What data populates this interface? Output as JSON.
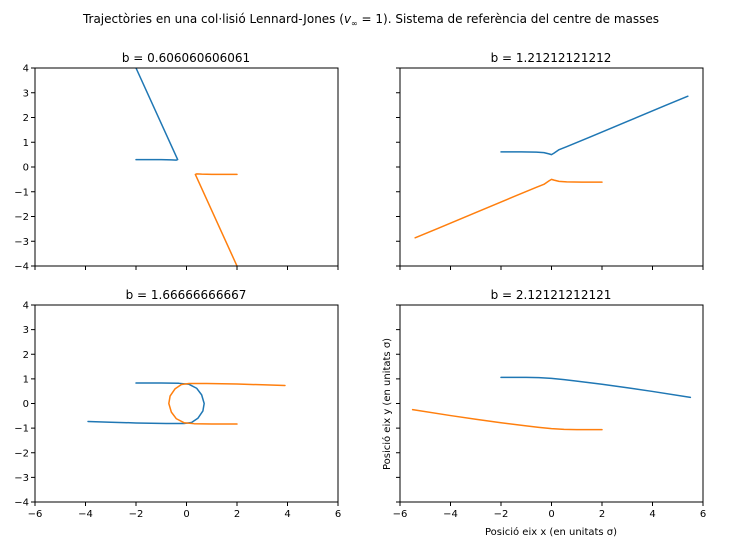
{
  "figure": {
    "suptitle_prefix": "Trajectòries en una col·lisió Lennard-Jones (",
    "suptitle_math": "v",
    "suptitle_sub": "∞",
    "suptitle_eq": " = 1",
    "suptitle_suffix": "). Sistema de referència del centre de masses",
    "xlabel": "Posició eix x (en unitats σ)",
    "ylabel": "Posició eix y (en unitats σ)"
  },
  "chart_data": [
    {
      "type": "line",
      "title": "b = 0.606060606061",
      "xlim": [
        -6,
        6
      ],
      "ylim": [
        -4,
        4
      ],
      "xticks": [
        -6,
        -4,
        -2,
        0,
        2,
        4,
        6
      ],
      "yticks": [
        -4,
        -3,
        -2,
        -1,
        0,
        1,
        2,
        3,
        4
      ],
      "show_xticklabels": false,
      "show_yticklabels": true,
      "series": [
        {
          "color": "#1f77b4",
          "x": [
            -2.0,
            -1.0,
            -0.6,
            -0.4,
            -0.35,
            -2.0
          ],
          "y": [
            0.3,
            0.3,
            0.29,
            0.28,
            0.3,
            4.0
          ]
        },
        {
          "color": "#ff7f0e",
          "x": [
            2.0,
            1.0,
            0.6,
            0.4,
            0.35,
            2.0
          ],
          "y": [
            -0.3,
            -0.3,
            -0.29,
            -0.28,
            -0.3,
            -4.0
          ]
        }
      ]
    },
    {
      "type": "line",
      "title": "b = 1.21212121212",
      "xlim": [
        -6,
        6
      ],
      "ylim": [
        -4,
        4
      ],
      "xticks": [
        -6,
        -4,
        -2,
        0,
        2,
        4,
        6
      ],
      "yticks": [
        -4,
        -3,
        -2,
        -1,
        0,
        1,
        2,
        3,
        4
      ],
      "show_xticklabels": false,
      "show_yticklabels": false,
      "series": [
        {
          "color": "#1f77b4",
          "x": [
            -2.0,
            -1.2,
            -0.6,
            -0.3,
            -0.1,
            0.0,
            0.1,
            0.3,
            0.6,
            1.5,
            3.0,
            4.5,
            5.4
          ],
          "y": [
            0.61,
            0.61,
            0.6,
            0.58,
            0.53,
            0.5,
            0.56,
            0.7,
            0.82,
            1.2,
            1.84,
            2.48,
            2.86
          ]
        },
        {
          "color": "#ff7f0e",
          "x": [
            2.0,
            1.2,
            0.6,
            0.3,
            0.1,
            0.0,
            -0.1,
            -0.3,
            -0.6,
            -1.5,
            -3.0,
            -4.5,
            -5.4
          ],
          "y": [
            -0.61,
            -0.61,
            -0.6,
            -0.58,
            -0.53,
            -0.5,
            -0.56,
            -0.7,
            -0.82,
            -1.2,
            -1.84,
            -2.48,
            -2.86
          ]
        }
      ]
    },
    {
      "type": "line",
      "title": "b = 1.66666666667",
      "xlim": [
        -6,
        6
      ],
      "ylim": [
        -4,
        4
      ],
      "xticks": [
        -6,
        -4,
        -2,
        0,
        2,
        4,
        6
      ],
      "yticks": [
        -4,
        -3,
        -2,
        -1,
        0,
        1,
        2,
        3,
        4
      ],
      "show_xticklabels": true,
      "show_yticklabels": true,
      "series": [
        {
          "color": "#1f77b4",
          "x": [
            -2.0,
            -1.0,
            -0.3,
            0.1,
            0.4,
            0.6,
            0.7,
            0.65,
            0.45,
            0.2,
            -0.1,
            -0.8,
            -2.0,
            -3.0,
            -3.9
          ],
          "y": [
            0.83,
            0.83,
            0.82,
            0.78,
            0.62,
            0.35,
            0.0,
            -0.3,
            -0.6,
            -0.77,
            -0.81,
            -0.81,
            -0.79,
            -0.76,
            -0.73
          ]
        },
        {
          "color": "#ff7f0e",
          "x": [
            2.0,
            1.0,
            0.3,
            -0.1,
            -0.4,
            -0.6,
            -0.7,
            -0.65,
            -0.45,
            -0.2,
            0.1,
            0.8,
            2.0,
            3.0,
            3.9
          ],
          "y": [
            -0.83,
            -0.83,
            -0.82,
            -0.78,
            -0.62,
            -0.35,
            0.0,
            0.3,
            0.6,
            0.77,
            0.81,
            0.81,
            0.79,
            0.76,
            0.73
          ]
        }
      ]
    },
    {
      "type": "line",
      "title": "b = 2.12121212121",
      "xlim": [
        -6,
        6
      ],
      "ylim": [
        -4,
        4
      ],
      "xticks": [
        -6,
        -4,
        -2,
        0,
        2,
        4,
        6
      ],
      "yticks": [
        -4,
        -3,
        -2,
        -1,
        0,
        1,
        2,
        3,
        4
      ],
      "show_xticklabels": true,
      "show_yticklabels": false,
      "series": [
        {
          "color": "#1f77b4",
          "x": [
            -2.0,
            -1.0,
            -0.5,
            0.0,
            0.5,
            1.0,
            2.0,
            3.0,
            4.0,
            5.5
          ],
          "y": [
            1.06,
            1.06,
            1.05,
            1.02,
            0.97,
            0.91,
            0.78,
            0.64,
            0.49,
            0.25
          ]
        },
        {
          "color": "#ff7f0e",
          "x": [
            2.0,
            1.0,
            0.5,
            0.0,
            -0.5,
            -1.0,
            -2.0,
            -3.0,
            -4.0,
            -5.5
          ],
          "y": [
            -1.06,
            -1.06,
            -1.05,
            -1.02,
            -0.97,
            -0.91,
            -0.78,
            -0.64,
            -0.49,
            -0.25
          ]
        }
      ]
    }
  ]
}
